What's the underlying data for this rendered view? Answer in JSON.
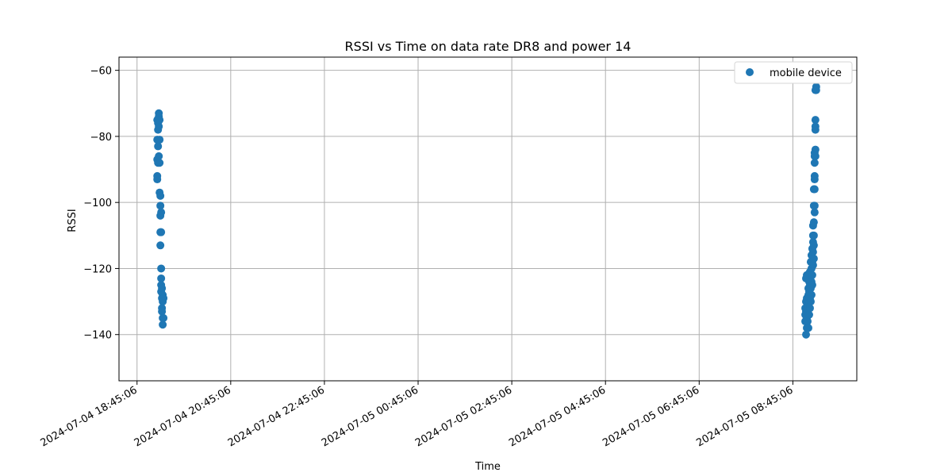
{
  "chart_data": {
    "type": "scatter",
    "title": "RSSI vs Time on data rate DR8 and power 14",
    "xlabel": "Time",
    "ylabel": "RSSI",
    "xlim": [
      "2024-07-04 18:22:00",
      "2024-07-05 10:07:00"
    ],
    "ylim": [
      -154,
      -56
    ],
    "grid": true,
    "legend_placement": "top-right",
    "x_ticks": [
      "2024-07-04 18:45:06",
      "2024-07-04 20:45:06",
      "2024-07-04 22:45:06",
      "2024-07-05 00:45:06",
      "2024-07-05 02:45:06",
      "2024-07-05 04:45:06",
      "2024-07-05 06:45:06",
      "2024-07-05 08:45:06"
    ],
    "y_ticks": [
      -60,
      -80,
      -100,
      -120,
      -140
    ],
    "y_tick_labels": [
      "−60",
      "−80",
      "−100",
      "−120",
      "−140"
    ],
    "series": [
      {
        "name": "mobile device",
        "color": "#1f77b4",
        "points": [
          [
            "2024-07-04 19:11:00",
            -75
          ],
          [
            "2024-07-04 19:11:00",
            -81
          ],
          [
            "2024-07-04 19:11:00",
            -87
          ],
          [
            "2024-07-04 19:11:00",
            -92
          ],
          [
            "2024-07-04 19:11:00",
            -93
          ],
          [
            "2024-07-04 19:12:00",
            -76
          ],
          [
            "2024-07-04 19:12:00",
            -83
          ],
          [
            "2024-07-04 19:12:00",
            -88
          ],
          [
            "2024-07-04 19:12:00",
            -78
          ],
          [
            "2024-07-04 19:13:00",
            -74
          ],
          [
            "2024-07-04 19:13:00",
            -77
          ],
          [
            "2024-07-04 19:13:00",
            -86
          ],
          [
            "2024-07-04 19:13:00",
            -73
          ],
          [
            "2024-07-04 19:14:00",
            -75
          ],
          [
            "2024-07-04 19:14:00",
            -81
          ],
          [
            "2024-07-04 19:14:00",
            -88
          ],
          [
            "2024-07-04 19:14:00",
            -97
          ],
          [
            "2024-07-04 19:15:00",
            -98
          ],
          [
            "2024-07-04 19:15:00",
            -101
          ],
          [
            "2024-07-04 19:15:00",
            -104
          ],
          [
            "2024-07-04 19:15:00",
            -109
          ],
          [
            "2024-07-04 19:15:00",
            -113
          ],
          [
            "2024-07-04 19:16:00",
            -103
          ],
          [
            "2024-07-04 19:16:00",
            -109
          ],
          [
            "2024-07-04 19:16:00",
            -120
          ],
          [
            "2024-07-04 19:16:00",
            -123
          ],
          [
            "2024-07-04 19:16:00",
            -125
          ],
          [
            "2024-07-04 19:16:00",
            -127
          ],
          [
            "2024-07-04 19:17:00",
            -126
          ],
          [
            "2024-07-04 19:17:00",
            -129
          ],
          [
            "2024-07-04 19:17:00",
            -132
          ],
          [
            "2024-07-04 19:17:00",
            -133
          ],
          [
            "2024-07-04 19:18:00",
            -128
          ],
          [
            "2024-07-04 19:18:00",
            -130
          ],
          [
            "2024-07-04 19:18:00",
            -135
          ],
          [
            "2024-07-04 19:18:00",
            -137
          ],
          [
            "2024-07-04 19:19:00",
            -129
          ],
          [
            "2024-07-04 19:19:00",
            -135
          ],
          [
            "2024-07-05 09:01:00",
            -132
          ],
          [
            "2024-07-05 09:01:00",
            -134
          ],
          [
            "2024-07-05 09:01:00",
            -136
          ],
          [
            "2024-07-05 09:02:00",
            -130
          ],
          [
            "2024-07-05 09:02:00",
            -133
          ],
          [
            "2024-07-05 09:02:00",
            -140
          ],
          [
            "2024-07-05 09:02:00",
            -123
          ],
          [
            "2024-07-05 09:03:00",
            -122
          ],
          [
            "2024-07-05 09:03:00",
            -129
          ],
          [
            "2024-07-05 09:03:00",
            -135
          ],
          [
            "2024-07-05 09:03:00",
            -138
          ],
          [
            "2024-07-05 09:04:00",
            -131
          ],
          [
            "2024-07-05 09:04:00",
            -133
          ],
          [
            "2024-07-05 09:04:00",
            -136
          ],
          [
            "2024-07-05 09:05:00",
            -126
          ],
          [
            "2024-07-05 09:05:00",
            -128
          ],
          [
            "2024-07-05 09:05:00",
            -132
          ],
          [
            "2024-07-05 09:05:00",
            -138
          ],
          [
            "2024-07-05 09:06:00",
            -124
          ],
          [
            "2024-07-05 09:06:00",
            -127
          ],
          [
            "2024-07-05 09:06:00",
            -130
          ],
          [
            "2024-07-05 09:06:00",
            -134
          ],
          [
            "2024-07-05 09:07:00",
            -121
          ],
          [
            "2024-07-05 09:07:00",
            -125
          ],
          [
            "2024-07-05 09:07:00",
            -129
          ],
          [
            "2024-07-05 09:07:00",
            -132
          ],
          [
            "2024-07-05 09:08:00",
            -118
          ],
          [
            "2024-07-05 09:08:00",
            -122
          ],
          [
            "2024-07-05 09:08:00",
            -126
          ],
          [
            "2024-07-05 09:08:00",
            -130
          ],
          [
            "2024-07-05 09:09:00",
            -116
          ],
          [
            "2024-07-05 09:09:00",
            -120
          ],
          [
            "2024-07-05 09:09:00",
            -124
          ],
          [
            "2024-07-05 09:09:00",
            -128
          ],
          [
            "2024-07-05 09:10:00",
            -114
          ],
          [
            "2024-07-05 09:10:00",
            -118
          ],
          [
            "2024-07-05 09:10:00",
            -122
          ],
          [
            "2024-07-05 09:10:00",
            -125
          ],
          [
            "2024-07-05 09:11:00",
            -110
          ],
          [
            "2024-07-05 09:11:00",
            -112
          ],
          [
            "2024-07-05 09:11:00",
            -115
          ],
          [
            "2024-07-05 09:11:00",
            -119
          ],
          [
            "2024-07-05 09:11:00",
            -107
          ],
          [
            "2024-07-05 09:12:00",
            -101
          ],
          [
            "2024-07-05 09:12:00",
            -106
          ],
          [
            "2024-07-05 09:12:00",
            -110
          ],
          [
            "2024-07-05 09:12:00",
            -113
          ],
          [
            "2024-07-05 09:12:00",
            -117
          ],
          [
            "2024-07-05 09:12:00",
            -96
          ],
          [
            "2024-07-05 09:13:00",
            -92
          ],
          [
            "2024-07-05 09:13:00",
            -88
          ],
          [
            "2024-07-05 09:13:00",
            -86
          ],
          [
            "2024-07-05 09:13:00",
            -85
          ],
          [
            "2024-07-05 09:13:00",
            -93
          ],
          [
            "2024-07-05 09:13:00",
            -101
          ],
          [
            "2024-07-05 09:13:00",
            -103
          ],
          [
            "2024-07-05 09:13:00",
            -96
          ],
          [
            "2024-07-05 09:14:00",
            -84
          ],
          [
            "2024-07-05 09:14:00",
            -78
          ],
          [
            "2024-07-05 09:14:00",
            -77
          ],
          [
            "2024-07-05 09:14:00",
            -75
          ],
          [
            "2024-07-05 09:14:00",
            -66
          ],
          [
            "2024-07-05 09:14:00",
            -86
          ],
          [
            "2024-07-05 09:15:00",
            -65
          ],
          [
            "2024-07-05 09:15:00",
            -66
          ]
        ]
      }
    ]
  }
}
